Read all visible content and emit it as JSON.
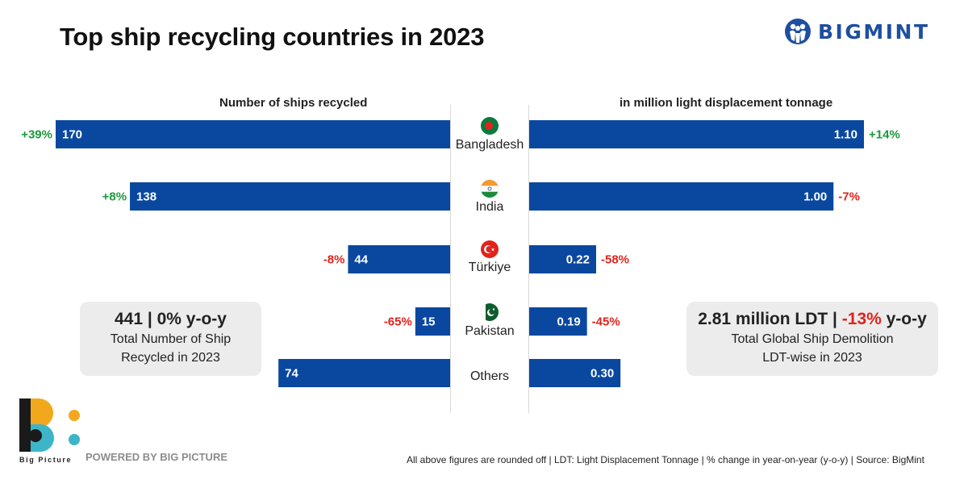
{
  "title": "Top ship recycling countries in 2023",
  "brand": "BIGMINT",
  "chart_data": {
    "type": "bar",
    "left_title": "Number of ships recycled",
    "right_title": "in million light displacement tonnage",
    "categories": [
      "Bangladesh",
      "India",
      "Türkiye",
      "Pakistan",
      "Others"
    ],
    "series": [
      {
        "name": "Number of ships recycled",
        "values": [
          170,
          138,
          44,
          15,
          74
        ],
        "labels": [
          "170",
          "138",
          "44",
          "15",
          "74"
        ],
        "changes": [
          "+39%",
          "+8%",
          "-8%",
          "-65%",
          ""
        ]
      },
      {
        "name": "in million light displacement tonnage",
        "values": [
          1.1,
          1.0,
          0.22,
          0.19,
          0.3
        ],
        "labels": [
          "1.10",
          "1.00",
          "0.22",
          "0.19",
          "0.30"
        ],
        "changes": [
          "+14%",
          "-7%",
          "-58%",
          "-45%",
          ""
        ]
      }
    ],
    "positive_color": "#1a9a3c",
    "negative_color": "#e0231c",
    "bar_color": "#0a48a0"
  },
  "summary_left": {
    "headline": "441 | 0% y-o-y",
    "line1": "Total Number of Ship",
    "line2": "Recycled in 2023"
  },
  "summary_right": {
    "headline_pre": "2.81 million LDT | ",
    "headline_change": "-13%",
    "headline_post": " y-o-y",
    "line1": "Total Global Ship Demolition",
    "line2": "LDT-wise in 2023"
  },
  "footer": {
    "logo_label": "Big Picture",
    "powered": "POWERED BY BIG PICTURE",
    "note": "All above figures are rounded off | LDT: Light Displacement Tonnage | % change in year-on-year (y-o-y) | Source: BigMint"
  }
}
